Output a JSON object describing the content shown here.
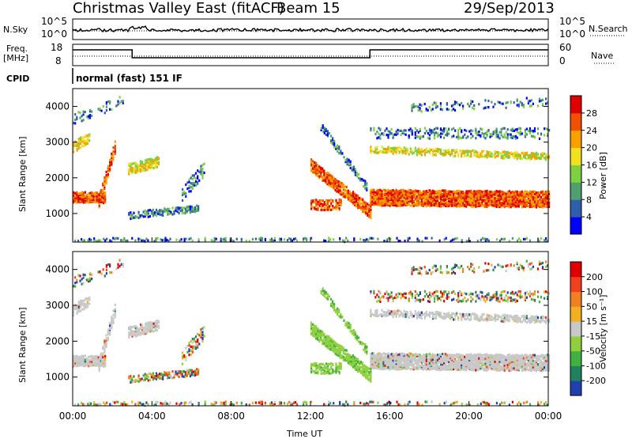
{
  "header": {
    "radar": "Christmas Valley East (fitACF)",
    "beam": "Beam 15",
    "date": "29/Sep/2013"
  },
  "top_panels": {
    "nsky_label": "N.Sky",
    "nsky_ticks": [
      "10^5",
      "10^0"
    ],
    "nsearch_label": "N.Search",
    "freq_label_line1": "Freq.",
    "freq_label_line2": "[MHz]",
    "freq_ticks": [
      "18",
      "8"
    ],
    "nave_label": "Nave",
    "nave_ticks": [
      "60",
      "0"
    ],
    "cpid_label": "CPID",
    "cpid_value": "normal (fast) 151 IF"
  },
  "chart_data": [
    {
      "type": "heatmap",
      "name": "power",
      "ylabel": "Slant Range [km]",
      "yticks": [
        1000,
        2000,
        3000,
        4000
      ],
      "ylim": [
        200,
        4500
      ],
      "xlim_hours": [
        0,
        24
      ],
      "colorbar_label": "Power [dB]",
      "colorbar_ticks": [
        4,
        8,
        12,
        16,
        20,
        24,
        28
      ],
      "colorbar_colors": [
        "#0000ff",
        "#2f5faa",
        "#4f9f6f",
        "#7fd040",
        "#f0e020",
        "#f8a000",
        "#f05000",
        "#e00000"
      ]
    },
    {
      "type": "heatmap",
      "name": "velocity",
      "ylabel": "Slant Range [km]",
      "yticks": [
        1000,
        2000,
        3000,
        4000
      ],
      "ylim": [
        200,
        4500
      ],
      "xlim_hours": [
        0,
        24
      ],
      "colorbar_label": "Velocity [m s⁻¹]",
      "colorbar_ticks": [
        200,
        100,
        50,
        15,
        -15,
        -50,
        -100,
        -200
      ],
      "colorbar_colors": [
        "#2040b0",
        "#208060",
        "#40b040",
        "#90d040",
        "#c8c8c8",
        "#f0b020",
        "#f08020",
        "#f04020",
        "#e00000"
      ]
    }
  ],
  "x_axis": {
    "ticks": [
      "00:00",
      "04:00",
      "08:00",
      "12:00",
      "16:00",
      "20:00",
      "00:00"
    ],
    "label": "Time UT"
  }
}
